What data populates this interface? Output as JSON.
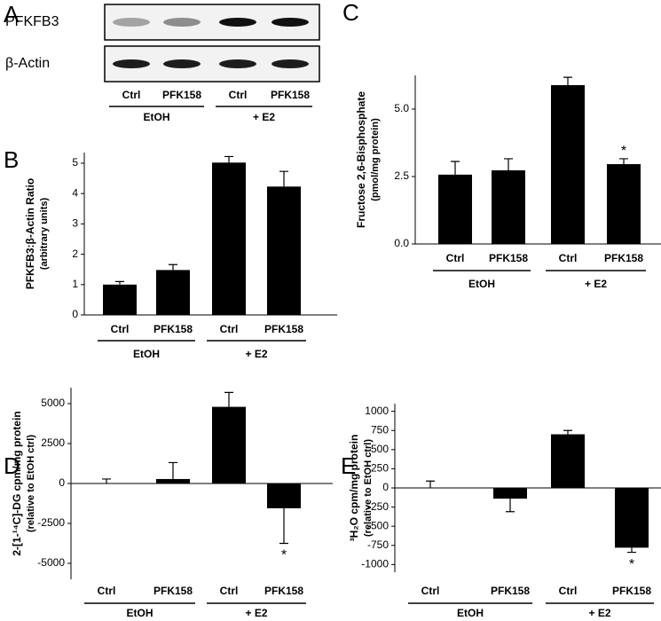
{
  "chart_data": [
    {
      "type": "blot",
      "panel": "A",
      "rows": [
        "PFKFB3",
        "β-Actin"
      ],
      "categories": [
        "Ctrl",
        "PFK158",
        "Ctrl",
        "PFK158"
      ],
      "groups": [
        "EtOH",
        "+ E2"
      ]
    },
    {
      "type": "bar",
      "panel": "B",
      "ylabel": [
        "PFKFB3:β-Actin Ratio",
        "(arbitrary units)"
      ],
      "categories": [
        "Ctrl",
        "PFK158",
        "Ctrl",
        "PFK158"
      ],
      "groups": [
        "EtOH",
        "+ E2"
      ],
      "values": [
        1.0,
        1.48,
        5.02,
        4.23
      ],
      "errors": [
        0.1,
        0.18,
        0.2,
        0.5
      ],
      "color": "#000000",
      "ylim": [
        0,
        5.35
      ],
      "yticks": [
        0,
        1,
        2,
        3,
        4,
        5
      ]
    },
    {
      "type": "bar",
      "panel": "C",
      "ylabel": [
        "Fructose 2,6-Bisphosphate",
        "(pmol/mg protein)"
      ],
      "categories": [
        "Ctrl",
        "PFK158",
        "Ctrl",
        "PFK158"
      ],
      "groups": [
        "EtOH",
        "+ E2"
      ],
      "values": [
        2.57,
        2.73,
        5.89,
        2.96
      ],
      "errors": [
        0.49,
        0.43,
        0.29,
        0.2
      ],
      "value_annotations": [
        null,
        null,
        null,
        "*"
      ],
      "color": "#000000",
      "ylim": [
        0,
        6.25
      ],
      "yticks": [
        {
          "value": 0,
          "label": "0.0"
        },
        {
          "value": 2.5,
          "label": "2.5"
        },
        {
          "value": 5,
          "label": "5.0"
        }
      ]
    },
    {
      "type": "bar",
      "panel": "D",
      "ylabel": [
        "2-[1-¹⁴C]-DG cpm/mg protein",
        "(relative to EtOH ctrl)"
      ],
      "categories": [
        "Ctrl",
        "PFK158",
        "Ctrl",
        "PFK158"
      ],
      "groups": [
        "EtOH",
        "+ E2"
      ],
      "values": [
        0,
        280,
        4800,
        -1550
      ],
      "errors": [
        280,
        1030,
        900,
        2200
      ],
      "value_annotations": [
        null,
        null,
        null,
        "*"
      ],
      "color": "#000000",
      "ylim": [
        -6000,
        6000
      ],
      "yticks": [
        -5000,
        -2500,
        0,
        2500,
        5000
      ]
    },
    {
      "type": "bar",
      "panel": "E",
      "ylabel": [
        "³H₂O cpm/mg protein",
        "(relative to EtOH ctrl)"
      ],
      "categories": [
        "Ctrl",
        "PFK158",
        "Ctrl",
        "PFK158"
      ],
      "groups": [
        "EtOH",
        "+ E2"
      ],
      "values": [
        0,
        -140,
        700,
        -780
      ],
      "errors": [
        90,
        170,
        50,
        60
      ],
      "value_annotations": [
        null,
        null,
        null,
        "*"
      ],
      "color": "#000000",
      "ylim": [
        -1100,
        1100
      ],
      "yticks": [
        -1000,
        -750,
        -500,
        -250,
        0,
        250,
        500,
        750,
        1000
      ]
    }
  ]
}
